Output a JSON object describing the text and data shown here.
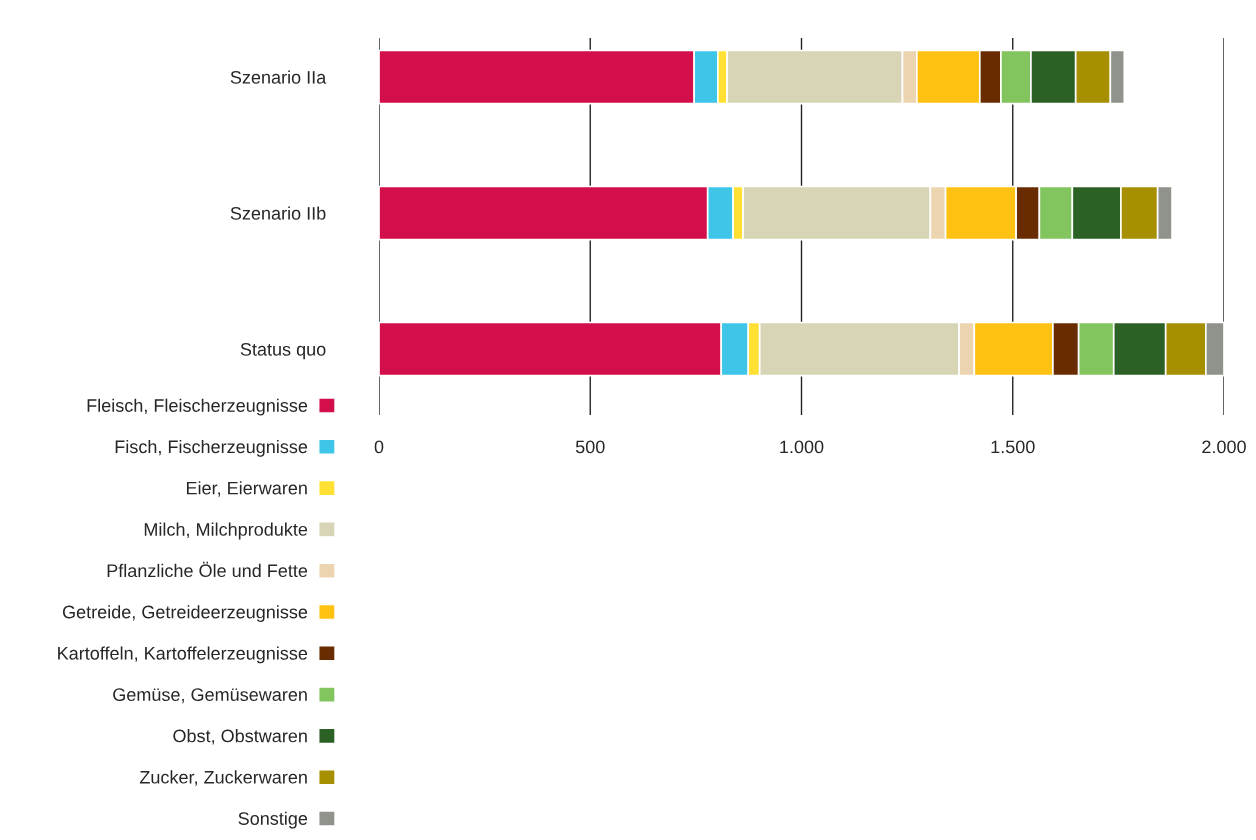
{
  "chart_data": {
    "type": "bar",
    "orientation": "horizontal",
    "stacked": true,
    "categories": [
      "Szenario IIa",
      "Szenario IIb",
      "Status quo"
    ],
    "series": [
      {
        "name": "Fleisch, Fleischerzeugnisse",
        "color": "#d20f4b",
        "values": [
          746,
          778,
          810
        ]
      },
      {
        "name": "Fisch, Fischerzeugnisse",
        "color": "#3ec5e8",
        "values": [
          56,
          60,
          64
        ]
      },
      {
        "name": "Eier, Eierwaren",
        "color": "#ffe033",
        "values": [
          22,
          24,
          27
        ]
      },
      {
        "name": "Milch, Milchprodukte",
        "color": "#d8d4b6",
        "values": [
          415,
          443,
          472
        ]
      },
      {
        "name": "Pflanzliche Öle und Fette",
        "color": "#edd4b0",
        "values": [
          34,
          36,
          36
        ]
      },
      {
        "name": "Getreide, Getreideerzeugnisse",
        "color": "#ffc212",
        "values": [
          149,
          167,
          186
        ]
      },
      {
        "name": "Kartoffeln, Kartoffelerzeugnisse",
        "color": "#692c00",
        "values": [
          50,
          55,
          61
        ]
      },
      {
        "name": "Gemüse, Gemüsewaren",
        "color": "#82c45e",
        "values": [
          71,
          78,
          83
        ]
      },
      {
        "name": "Obst, Obstwaren",
        "color": "#2b6124",
        "values": [
          106,
          115,
          123
        ]
      },
      {
        "name": "Zucker, Zuckerwaren",
        "color": "#a68f00",
        "values": [
          82,
          87,
          95
        ]
      },
      {
        "name": "Sonstige",
        "color": "#8f938b",
        "values": [
          33,
          34,
          43
        ]
      }
    ],
    "xlim": [
      0,
      2000
    ],
    "xticks": [
      0,
      500,
      {
        "value": 1000,
        "label": "1.000"
      },
      {
        "value": 1500,
        "label": "1.500"
      },
      {
        "value": 2000,
        "label": "2.000"
      }
    ],
    "grid": "x",
    "legend": "bottom left"
  }
}
